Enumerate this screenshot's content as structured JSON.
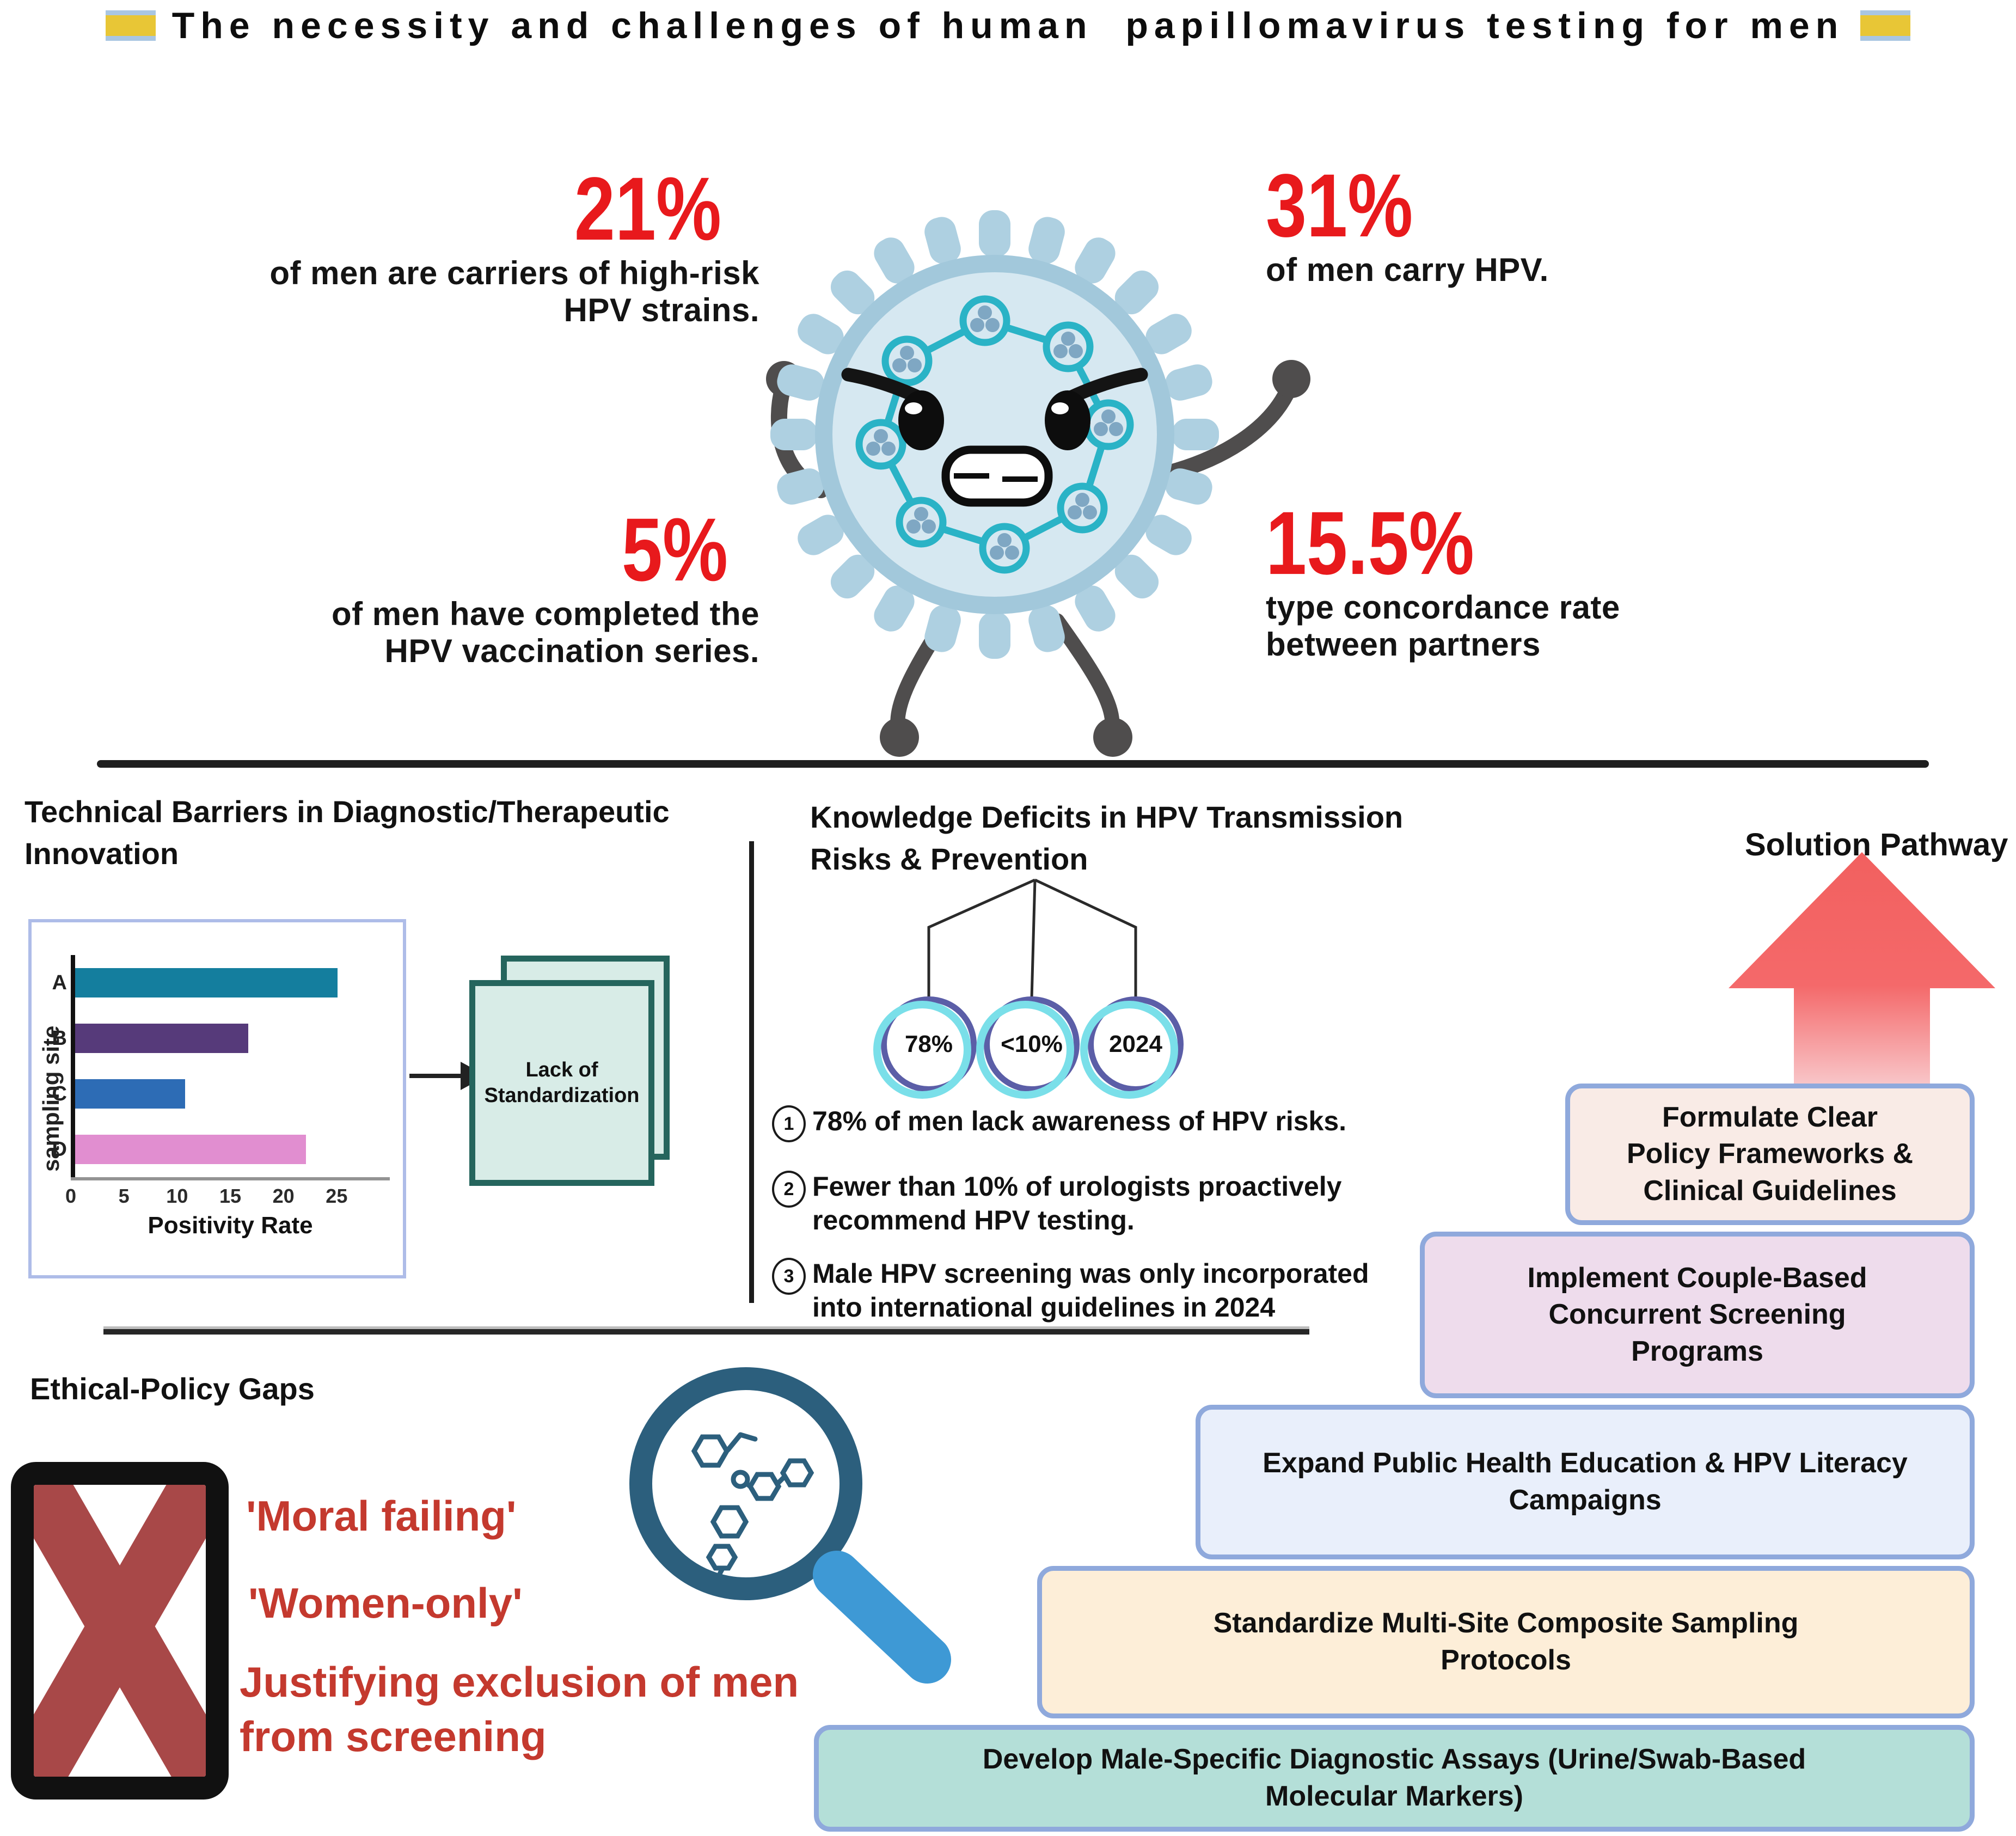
{
  "title": "The necessity and challenges of human  papillomavirus testing for men",
  "stats": {
    "carriers": {
      "value": "21%",
      "label": "of men are carriers of high-risk HPV strains."
    },
    "carry": {
      "value": "31%",
      "label": "of men carry HPV."
    },
    "vaccinated": {
      "value": "5%",
      "label": "of men have completed the HPV vaccination series."
    },
    "concordance": {
      "value": "15.5%",
      "label": "type concordance rate between partners"
    }
  },
  "technical": {
    "heading": "Technical Barriers in Diagnostic/Therapeutic Innovation",
    "doc_label": "Lack of Standardization"
  },
  "chart_data": {
    "type": "bar",
    "orientation": "horizontal",
    "title": "",
    "xlabel": "Positivity Rate",
    "ylabel": "sampling site",
    "categories": [
      "A",
      "B",
      "C",
      "D"
    ],
    "values": [
      25,
      16.5,
      10.5,
      22
    ],
    "bar_colors": [
      "#147e9e",
      "#563a7a",
      "#2d6cb5",
      "#e18ed0"
    ],
    "xticks": [
      0,
      5,
      10,
      15,
      20,
      25
    ],
    "xlim": [
      0,
      30
    ],
    "grid": false,
    "legend": false
  },
  "knowledge": {
    "heading": "Knowledge Deficits in HPV Transmission Risks & Prevention",
    "circles": [
      "78%",
      "<10%",
      "2024"
    ],
    "points": [
      {
        "num": "1",
        "text": "78% of men lack awareness of HPV risks."
      },
      {
        "num": "2",
        "text": "Fewer than 10% of urologists proactively recommend HPV testing."
      },
      {
        "num": "3",
        "text": "Male HPV screening was only incorporated into international guidelines in 2024"
      }
    ]
  },
  "ethical": {
    "heading": "Ethical-Policy Gaps",
    "quote1": "'Moral failing'",
    "quote2": "'Women-only'",
    "quote3": "Justifying exclusion of men from screening"
  },
  "solution": {
    "heading": "Solution Pathway",
    "steps": [
      {
        "label": "Formulate Clear Policy Frameworks & Clinical Guidelines",
        "bg": "#f9ebe6"
      },
      {
        "label": "Implement Couple-Based Concurrent Screening Programs",
        "bg": "#eedcec"
      },
      {
        "label": "Expand Public Health Education & HPV Literacy Campaigns",
        "bg": "#e9effb"
      },
      {
        "label": "Standardize Multi-Site Composite Sampling Protocols",
        "bg": "#fdeed8"
      },
      {
        "label": "Develop Male-Specific Diagnostic Assays (Urine/Swab-Based Molecular Markers)",
        "bg": "#b4dfd8"
      }
    ]
  },
  "colors": {
    "stat_red": "#e8191c",
    "quote_red": "#c4392e",
    "x_mark_red": "#a84848",
    "arrow_red": "#f2605f",
    "box_border_blue": "#8fa9dc",
    "virus_body_blue": "#d6e8f1",
    "virus_spike_blue": "#aed0e1",
    "virus_genome_teal": "#2ab3c6",
    "document_green": "#d8ece7",
    "circle_purple": "#5b5ea7",
    "circle_cyan": "#7adfe9",
    "magnifier_ring": "#2c5f7d",
    "magnifier_handle": "#3e99d5",
    "title_marker_yellow": "#e8c636"
  }
}
